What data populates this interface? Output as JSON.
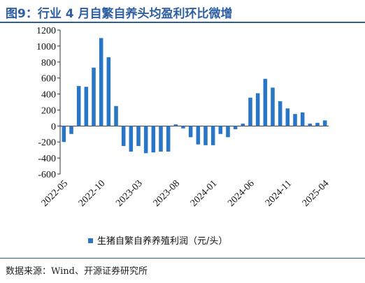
{
  "title": "图9：行业 4 月自繁自养头均盈利环比微增",
  "source": "数据来源：Wind、开源证券研究所",
  "colors": {
    "accent": "#2e5fa3",
    "bar": "#2a76c6"
  },
  "chart_data": {
    "type": "bar",
    "title": "图9：行业 4 月自繁自养头均盈利环比微增",
    "ylim": [
      -600,
      1200
    ],
    "yticks": [
      -600,
      -400,
      -200,
      0,
      200,
      400,
      600,
      800,
      1000,
      1200
    ],
    "x_ticklabels": [
      "2022-05",
      "2022-10",
      "2023-03",
      "2023-08",
      "2024-01",
      "2024-06",
      "2024-11",
      "2025-04"
    ],
    "x_tick_every": 5,
    "legend_position": "bottom-center",
    "grid": false,
    "series": [
      {
        "name": "生猪自繁自养养殖利润（元/头）",
        "x": [
          "2022-05",
          "2022-06",
          "2022-07",
          "2022-08",
          "2022-09",
          "2022-10",
          "2022-11",
          "2022-12",
          "2023-01",
          "2023-02",
          "2023-03",
          "2023-04",
          "2023-05",
          "2023-06",
          "2023-07",
          "2023-08",
          "2023-09",
          "2023-10",
          "2023-11",
          "2023-12",
          "2024-01",
          "2024-02",
          "2024-03",
          "2024-04",
          "2024-05",
          "2024-06",
          "2024-07",
          "2024-08",
          "2024-09",
          "2024-10",
          "2024-11",
          "2024-12",
          "2025-01",
          "2025-02",
          "2025-03",
          "2025-04"
        ],
        "values": [
          -200,
          -100,
          500,
          490,
          730,
          1100,
          860,
          250,
          -250,
          -320,
          -250,
          -340,
          -330,
          -320,
          -320,
          20,
          -30,
          -140,
          -230,
          -240,
          -240,
          -100,
          -140,
          -40,
          30,
          355,
          410,
          590,
          480,
          310,
          220,
          150,
          170,
          30,
          40,
          70
        ]
      }
    ]
  }
}
